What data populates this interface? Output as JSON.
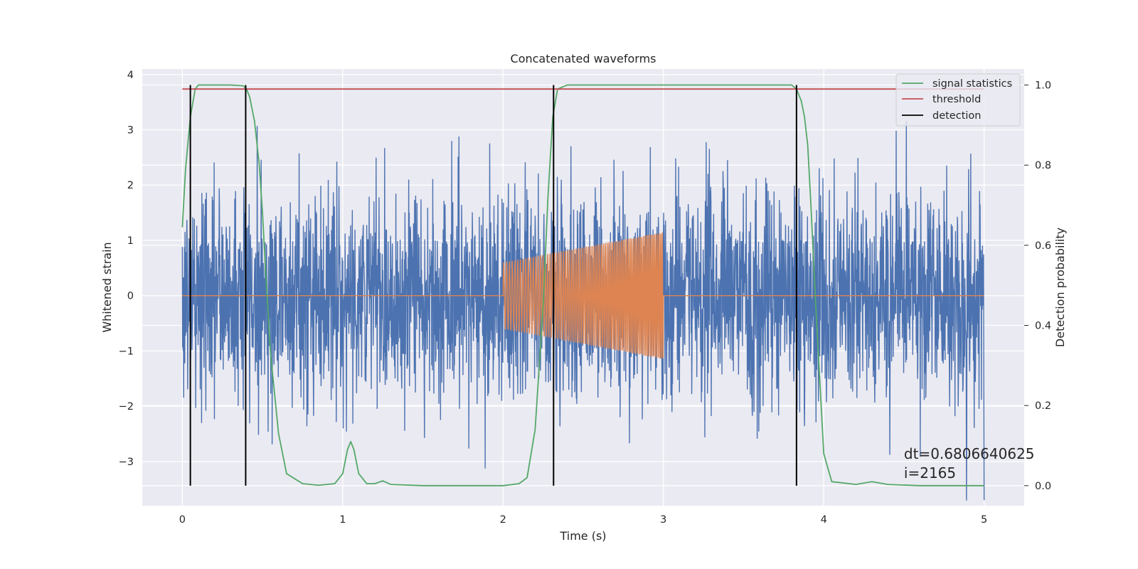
{
  "chart_data": {
    "type": "line",
    "title": "Concatenated waveforms",
    "xlabel": "Time (s)",
    "ylabel": "Whitened strain",
    "y2label": "Detection probability",
    "xlim": [
      -0.25,
      5.25
    ],
    "ylim": [
      -3.8,
      4.1
    ],
    "y2lim": [
      -0.05,
      1.04
    ],
    "xticks": [
      0,
      1,
      2,
      3,
      4,
      5
    ],
    "xtick_labels": [
      "0",
      "1",
      "2",
      "3",
      "4",
      "5"
    ],
    "yticks": [
      -3,
      -2,
      -1,
      0,
      1,
      2,
      3,
      4
    ],
    "ytick_labels": [
      "−3",
      "−2",
      "−1",
      "0",
      "1",
      "2",
      "3",
      "4"
    ],
    "y2ticks": [
      0.0,
      0.2,
      0.4,
      0.6,
      0.8,
      1.0
    ],
    "y2tick_labels": [
      "0.0",
      "0.2",
      "0.4",
      "0.6",
      "0.8",
      "1.0"
    ],
    "grid": true,
    "legend_position": "top-right",
    "colors": {
      "strain": "#4c72b0",
      "injection": "#dd8452",
      "statistics": "#55a868",
      "threshold": "#c44e52",
      "detection": "#000000",
      "axes_bg": "#eaeaf2"
    },
    "series": [
      {
        "name": "",
        "axis": "left",
        "kind": "noise",
        "x_range": [
          0,
          5
        ],
        "amplitude_envelope": 3.7
      },
      {
        "name": "",
        "axis": "left",
        "kind": "chirp",
        "x_range": [
          2,
          3
        ],
        "amplitude_start": 0.6,
        "amplitude_end": 1.15
      },
      {
        "name": "signal statistics",
        "axis": "right",
        "x": [
          0.0,
          0.02,
          0.05,
          0.08,
          0.1,
          0.2,
          0.3,
          0.38,
          0.4,
          0.42,
          0.45,
          0.48,
          0.5,
          0.52,
          0.55,
          0.6,
          0.65,
          0.75,
          0.85,
          0.95,
          1.0,
          1.03,
          1.05,
          1.07,
          1.1,
          1.15,
          1.2,
          1.25,
          1.3,
          1.5,
          2.0,
          2.1,
          2.15,
          2.2,
          2.25,
          2.28,
          2.31,
          2.34,
          2.4,
          3.0,
          3.8,
          3.83,
          3.86,
          3.88,
          3.9,
          3.92,
          3.95,
          4.0,
          4.05,
          4.2,
          4.3,
          4.4,
          4.6,
          5.0
        ],
        "y": [
          0.645,
          0.79,
          0.92,
          0.99,
          1.0,
          1.0,
          1.0,
          0.998,
          0.99,
          0.97,
          0.91,
          0.8,
          0.68,
          0.53,
          0.33,
          0.13,
          0.03,
          0.005,
          0.001,
          0.005,
          0.03,
          0.09,
          0.11,
          0.09,
          0.03,
          0.005,
          0.005,
          0.012,
          0.003,
          0.0,
          0.0,
          0.005,
          0.02,
          0.14,
          0.45,
          0.72,
          0.92,
          0.99,
          1.0,
          1.0,
          1.0,
          0.99,
          0.96,
          0.92,
          0.85,
          0.7,
          0.45,
          0.08,
          0.01,
          0.003,
          0.01,
          0.003,
          0.0,
          0.0
        ]
      },
      {
        "name": "threshold",
        "axis": "right",
        "x": [
          0,
          5
        ],
        "y": [
          0.99,
          0.99
        ]
      },
      {
        "name": "detection",
        "axis": "right",
        "kind": "vlines",
        "x": [
          0.05,
          0.395,
          2.315,
          3.83
        ],
        "y_range": [
          0,
          1
        ]
      }
    ],
    "annotations": [
      {
        "text": "dt=0.6806640625",
        "x": 4.5,
        "y": -2.95
      },
      {
        "text": " i=2165",
        "x": 4.5,
        "y": -3.3
      }
    ]
  }
}
